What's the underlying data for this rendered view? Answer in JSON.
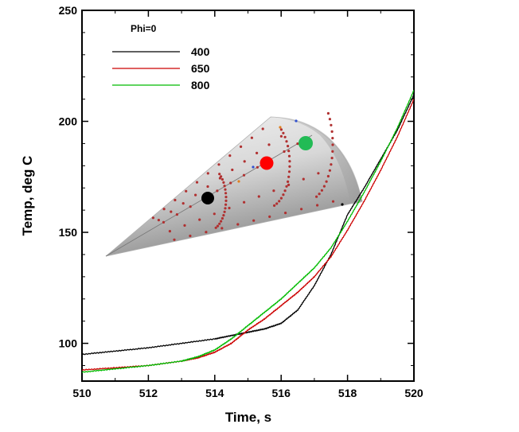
{
  "chart_data": {
    "type": "line",
    "title": "",
    "xlabel": "Time, s",
    "ylabel": "Temp, deg C",
    "xlim": [
      510,
      520
    ],
    "ylim": [
      83,
      250
    ],
    "x_ticks": [
      510,
      512,
      514,
      516,
      518,
      520
    ],
    "y_ticks": [
      100,
      150,
      200,
      250
    ],
    "grid": false,
    "legend": {
      "title": "Phi=0",
      "placement": "top-left"
    },
    "series": [
      {
        "name": "400",
        "color": "#000000",
        "x": [
          510,
          511,
          512,
          513,
          514,
          514.5,
          515,
          515.5,
          516,
          516.5,
          517,
          517.5,
          518,
          518.5,
          519,
          519.5,
          520
        ],
        "y": [
          95,
          96.5,
          98,
          100,
          102,
          103.5,
          105,
          106.5,
          109,
          115,
          126,
          140,
          158,
          170,
          183,
          196,
          212
        ]
      },
      {
        "name": "650",
        "color": "#cc0000",
        "x": [
          510,
          511,
          512,
          513,
          513.5,
          514,
          514.5,
          515,
          515.5,
          516,
          516.5,
          517,
          517.5,
          518,
          518.5,
          519,
          519.5,
          520
        ],
        "y": [
          88,
          89,
          90,
          92,
          93.5,
          96,
          100,
          106,
          111,
          117,
          123,
          130,
          139,
          151,
          164,
          178,
          193,
          210
        ]
      },
      {
        "name": "800",
        "color": "#00bb00",
        "x": [
          510,
          511,
          512,
          513,
          513.5,
          514,
          514.5,
          515,
          515.5,
          516,
          516.5,
          517,
          517.5,
          518,
          518.5,
          519,
          519.5,
          520
        ],
        "y": [
          87,
          88.5,
          90,
          92,
          94,
          97,
          102,
          108,
          114,
          120,
          127,
          134,
          143,
          155,
          168,
          182,
          197,
          214
        ]
      }
    ],
    "inset": {
      "description_markers": [
        "black",
        "red",
        "green"
      ],
      "marker_colors": [
        "#000000",
        "#ff0000",
        "#22bb55"
      ]
    }
  }
}
